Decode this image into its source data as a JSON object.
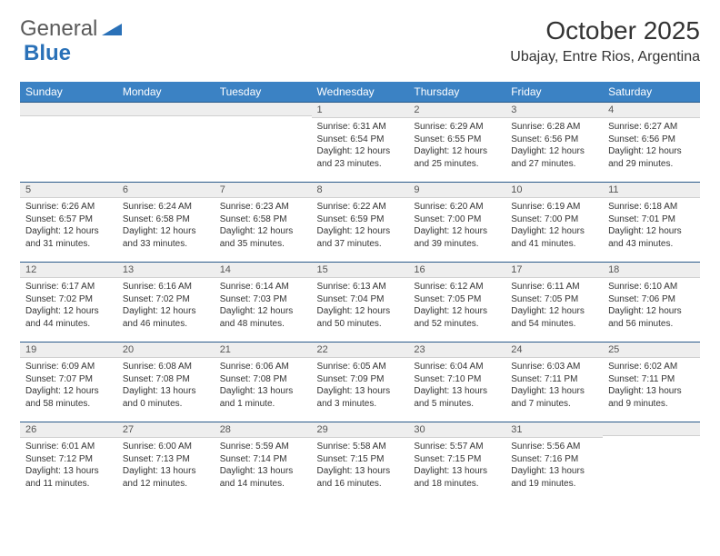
{
  "header": {
    "logo_text_1": "General",
    "logo_text_2": "Blue",
    "month_title": "October 2025",
    "location": "Ubajay, Entre Rios, Argentina"
  },
  "colors": {
    "header_bg": "#3b82c4",
    "header_text": "#ffffff",
    "daynum_bg": "#eeeeee",
    "cell_border": "#2a5a8a",
    "logo_blue": "#2a71b8",
    "body_text": "#333333"
  },
  "calendar": {
    "day_labels": [
      "Sunday",
      "Monday",
      "Tuesday",
      "Wednesday",
      "Thursday",
      "Friday",
      "Saturday"
    ],
    "weeks": [
      [
        {
          "num": "",
          "sunrise": "",
          "sunset": "",
          "daylight": ""
        },
        {
          "num": "",
          "sunrise": "",
          "sunset": "",
          "daylight": ""
        },
        {
          "num": "",
          "sunrise": "",
          "sunset": "",
          "daylight": ""
        },
        {
          "num": "1",
          "sunrise": "Sunrise: 6:31 AM",
          "sunset": "Sunset: 6:54 PM",
          "daylight": "Daylight: 12 hours and 23 minutes."
        },
        {
          "num": "2",
          "sunrise": "Sunrise: 6:29 AM",
          "sunset": "Sunset: 6:55 PM",
          "daylight": "Daylight: 12 hours and 25 minutes."
        },
        {
          "num": "3",
          "sunrise": "Sunrise: 6:28 AM",
          "sunset": "Sunset: 6:56 PM",
          "daylight": "Daylight: 12 hours and 27 minutes."
        },
        {
          "num": "4",
          "sunrise": "Sunrise: 6:27 AM",
          "sunset": "Sunset: 6:56 PM",
          "daylight": "Daylight: 12 hours and 29 minutes."
        }
      ],
      [
        {
          "num": "5",
          "sunrise": "Sunrise: 6:26 AM",
          "sunset": "Sunset: 6:57 PM",
          "daylight": "Daylight: 12 hours and 31 minutes."
        },
        {
          "num": "6",
          "sunrise": "Sunrise: 6:24 AM",
          "sunset": "Sunset: 6:58 PM",
          "daylight": "Daylight: 12 hours and 33 minutes."
        },
        {
          "num": "7",
          "sunrise": "Sunrise: 6:23 AM",
          "sunset": "Sunset: 6:58 PM",
          "daylight": "Daylight: 12 hours and 35 minutes."
        },
        {
          "num": "8",
          "sunrise": "Sunrise: 6:22 AM",
          "sunset": "Sunset: 6:59 PM",
          "daylight": "Daylight: 12 hours and 37 minutes."
        },
        {
          "num": "9",
          "sunrise": "Sunrise: 6:20 AM",
          "sunset": "Sunset: 7:00 PM",
          "daylight": "Daylight: 12 hours and 39 minutes."
        },
        {
          "num": "10",
          "sunrise": "Sunrise: 6:19 AM",
          "sunset": "Sunset: 7:00 PM",
          "daylight": "Daylight: 12 hours and 41 minutes."
        },
        {
          "num": "11",
          "sunrise": "Sunrise: 6:18 AM",
          "sunset": "Sunset: 7:01 PM",
          "daylight": "Daylight: 12 hours and 43 minutes."
        }
      ],
      [
        {
          "num": "12",
          "sunrise": "Sunrise: 6:17 AM",
          "sunset": "Sunset: 7:02 PM",
          "daylight": "Daylight: 12 hours and 44 minutes."
        },
        {
          "num": "13",
          "sunrise": "Sunrise: 6:16 AM",
          "sunset": "Sunset: 7:02 PM",
          "daylight": "Daylight: 12 hours and 46 minutes."
        },
        {
          "num": "14",
          "sunrise": "Sunrise: 6:14 AM",
          "sunset": "Sunset: 7:03 PM",
          "daylight": "Daylight: 12 hours and 48 minutes."
        },
        {
          "num": "15",
          "sunrise": "Sunrise: 6:13 AM",
          "sunset": "Sunset: 7:04 PM",
          "daylight": "Daylight: 12 hours and 50 minutes."
        },
        {
          "num": "16",
          "sunrise": "Sunrise: 6:12 AM",
          "sunset": "Sunset: 7:05 PM",
          "daylight": "Daylight: 12 hours and 52 minutes."
        },
        {
          "num": "17",
          "sunrise": "Sunrise: 6:11 AM",
          "sunset": "Sunset: 7:05 PM",
          "daylight": "Daylight: 12 hours and 54 minutes."
        },
        {
          "num": "18",
          "sunrise": "Sunrise: 6:10 AM",
          "sunset": "Sunset: 7:06 PM",
          "daylight": "Daylight: 12 hours and 56 minutes."
        }
      ],
      [
        {
          "num": "19",
          "sunrise": "Sunrise: 6:09 AM",
          "sunset": "Sunset: 7:07 PM",
          "daylight": "Daylight: 12 hours and 58 minutes."
        },
        {
          "num": "20",
          "sunrise": "Sunrise: 6:08 AM",
          "sunset": "Sunset: 7:08 PM",
          "daylight": "Daylight: 13 hours and 0 minutes."
        },
        {
          "num": "21",
          "sunrise": "Sunrise: 6:06 AM",
          "sunset": "Sunset: 7:08 PM",
          "daylight": "Daylight: 13 hours and 1 minute."
        },
        {
          "num": "22",
          "sunrise": "Sunrise: 6:05 AM",
          "sunset": "Sunset: 7:09 PM",
          "daylight": "Daylight: 13 hours and 3 minutes."
        },
        {
          "num": "23",
          "sunrise": "Sunrise: 6:04 AM",
          "sunset": "Sunset: 7:10 PM",
          "daylight": "Daylight: 13 hours and 5 minutes."
        },
        {
          "num": "24",
          "sunrise": "Sunrise: 6:03 AM",
          "sunset": "Sunset: 7:11 PM",
          "daylight": "Daylight: 13 hours and 7 minutes."
        },
        {
          "num": "25",
          "sunrise": "Sunrise: 6:02 AM",
          "sunset": "Sunset: 7:11 PM",
          "daylight": "Daylight: 13 hours and 9 minutes."
        }
      ],
      [
        {
          "num": "26",
          "sunrise": "Sunrise: 6:01 AM",
          "sunset": "Sunset: 7:12 PM",
          "daylight": "Daylight: 13 hours and 11 minutes."
        },
        {
          "num": "27",
          "sunrise": "Sunrise: 6:00 AM",
          "sunset": "Sunset: 7:13 PM",
          "daylight": "Daylight: 13 hours and 12 minutes."
        },
        {
          "num": "28",
          "sunrise": "Sunrise: 5:59 AM",
          "sunset": "Sunset: 7:14 PM",
          "daylight": "Daylight: 13 hours and 14 minutes."
        },
        {
          "num": "29",
          "sunrise": "Sunrise: 5:58 AM",
          "sunset": "Sunset: 7:15 PM",
          "daylight": "Daylight: 13 hours and 16 minutes."
        },
        {
          "num": "30",
          "sunrise": "Sunrise: 5:57 AM",
          "sunset": "Sunset: 7:15 PM",
          "daylight": "Daylight: 13 hours and 18 minutes."
        },
        {
          "num": "31",
          "sunrise": "Sunrise: 5:56 AM",
          "sunset": "Sunset: 7:16 PM",
          "daylight": "Daylight: 13 hours and 19 minutes."
        },
        {
          "num": "",
          "sunrise": "",
          "sunset": "",
          "daylight": ""
        }
      ]
    ]
  }
}
